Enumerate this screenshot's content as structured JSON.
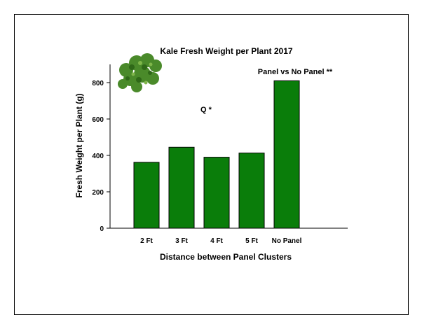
{
  "chart_data": {
    "type": "bar",
    "title": "Kale Fresh Weight per Plant 2017",
    "xlabel": "Distance between Panel Clusters",
    "ylabel": "Fresh Weight per Plant (g)",
    "categories": [
      "2 Ft",
      "3 Ft",
      "4 Ft",
      "5 Ft",
      "No Panel"
    ],
    "values": [
      362,
      445,
      390,
      413,
      810
    ],
    "ylim": [
      0,
      900
    ],
    "yticks": [
      0,
      200,
      400,
      600,
      800
    ],
    "grid": false,
    "bar_color": "#0a7d0a",
    "annotations": [
      "Q *",
      "Panel vs No Panel **"
    ],
    "image": "kale-leaf-icon"
  }
}
